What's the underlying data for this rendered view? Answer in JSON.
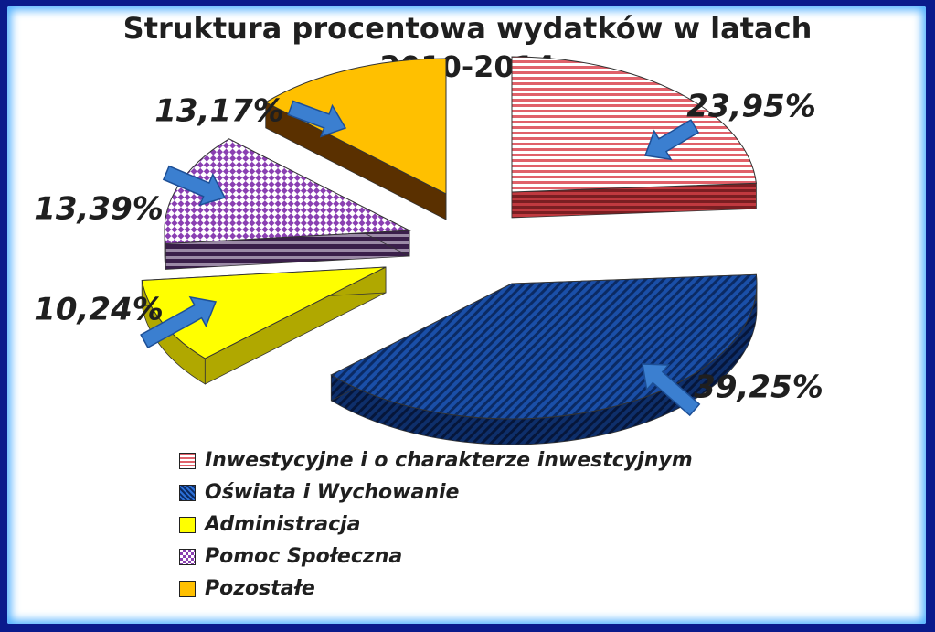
{
  "chart_data": {
    "type": "pie",
    "title": "Struktura procentowa wydatków w latach",
    "subtitle": "2010-2014",
    "legend_position": "bottom",
    "slices": [
      {
        "label": "Inwestycyjne i o charakterze inwestcyjnym",
        "value": 23.95,
        "value_label": "23,95%",
        "color": "#e0616a",
        "pattern": "horizontal-stripes"
      },
      {
        "label": "Oświata i Wychowanie",
        "value": 39.25,
        "value_label": "39,25%",
        "color": "#2b6fd6",
        "pattern": "diagonal-stripes"
      },
      {
        "label": "Administracja",
        "value": 10.24,
        "value_label": "10,24%",
        "color": "#ffff00",
        "pattern": "solid"
      },
      {
        "label": "Pomoc Społeczna",
        "value": 13.39,
        "value_label": "13,39%",
        "color": "#8a3fb2",
        "pattern": "checker"
      },
      {
        "label": "Pozostałe",
        "value": 13.17,
        "value_label": "13,17%",
        "color": "#ffc000",
        "pattern": "solid"
      }
    ]
  }
}
